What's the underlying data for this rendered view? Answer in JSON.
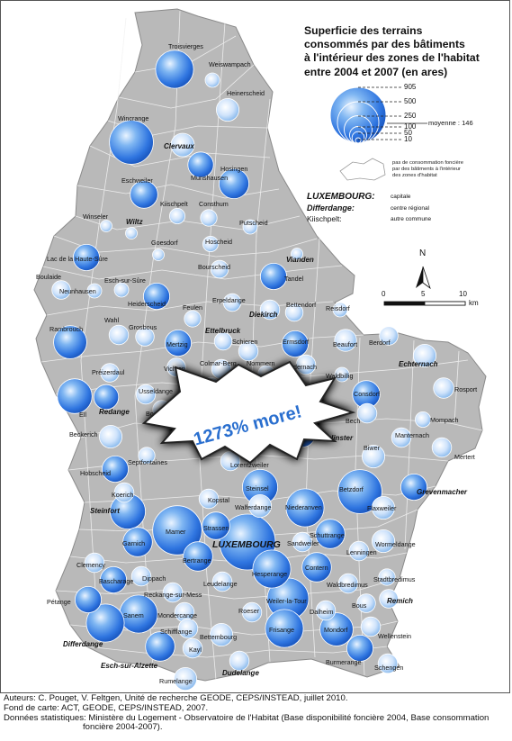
{
  "legend": {
    "title_lines": [
      "Superficie des terrains",
      "consommés par des bâtiments",
      "à l'intérieur des zones de l'habitat",
      "entre 2004 et 2007 (en ares)"
    ],
    "values": [
      "905",
      "500",
      "250",
      "100",
      "50",
      "10"
    ],
    "mean_label": "moyenne : 146",
    "no_consumption_lines": [
      "pas de consommation foncière",
      "par des bâtiments à l'intérieur",
      "des zones d'habitat"
    ],
    "hierarchy": [
      {
        "name": "LUXEMBOURG:",
        "label": "capitale"
      },
      {
        "name": "Differdange:",
        "label": "centre régional"
      },
      {
        "name": "Kiischpelt:",
        "label": "autre commune"
      }
    ]
  },
  "north_label": "N",
  "scale": {
    "ticks": [
      "0",
      "5",
      "10"
    ],
    "unit": "km"
  },
  "promo": "1273% more!",
  "footer": [
    "Auteurs: C. Pouget, V. Feltgen, Unité de recherche GEODE, CEPS/INSTEAD, juillet 2010.",
    "Fond de carte: ACT, GEODE, CEPS/INSTEAD, 2007.",
    "Données statistiques: Ministère du Logement - Observatoire de l'Habitat (Base disponibilité foncière 2004, Base consommation",
    "foncière 2004-2007)."
  ],
  "communes": [
    {
      "name": "Troisvierges",
      "value": 420
    },
    {
      "name": "Weiswampach",
      "value": 60
    },
    {
      "name": "Heinerscheid",
      "value": 150
    },
    {
      "name": "Wincrange",
      "value": 560
    },
    {
      "name": "Clervaux",
      "value": 160
    },
    {
      "name": "Munshausen",
      "value": 190
    },
    {
      "name": "Hosingen",
      "value": 260
    },
    {
      "name": "Eschweiler",
      "value": 220
    },
    {
      "name": "Kiischpelt",
      "value": 70
    },
    {
      "name": "Consthum",
      "value": 80
    },
    {
      "name": "Winseler",
      "value": 40
    },
    {
      "name": "Wiltz",
      "value": 40
    },
    {
      "name": "Putscheid",
      "value": 60
    },
    {
      "name": "Goesdorf",
      "value": 40
    },
    {
      "name": "Hoscheid",
      "value": 70
    },
    {
      "name": "Lac de la Haute-Sûre",
      "value": 200
    },
    {
      "name": "Vianden",
      "value": 40
    },
    {
      "name": "Boulaide",
      "value": 100
    },
    {
      "name": "Esch-sur-Sûre",
      "value": 60
    },
    {
      "name": "Bourscheid",
      "value": 90
    },
    {
      "name": "Tandel",
      "value": 200
    },
    {
      "name": "Neunhausen",
      "value": 60
    },
    {
      "name": "Heiderscheid",
      "value": 200
    },
    {
      "name": "Erpeldange",
      "value": 90
    },
    {
      "name": "Feulen",
      "value": 80
    },
    {
      "name": "Diekirch",
      "value": 110
    },
    {
      "name": "Bettendorf",
      "value": 90
    },
    {
      "name": "Reisdorf",
      "value": 60
    },
    {
      "name": "Rambrouch",
      "value": 320
    },
    {
      "name": "Wahl",
      "value": 110
    },
    {
      "name": "Grosbous",
      "value": 100
    },
    {
      "name": "Ettelbruck",
      "value": 90
    },
    {
      "name": "Mertzig",
      "value": 200
    },
    {
      "name": "Schieren",
      "value": 110
    },
    {
      "name": "Ermsdorf",
      "value": 200
    },
    {
      "name": "Beaufort",
      "value": 140
    },
    {
      "name": "Berdorf",
      "value": 100
    },
    {
      "name": "Colmar-Berg",
      "value": 110
    },
    {
      "name": "Nommern",
      "value": 80
    },
    {
      "name": "Medernach",
      "value": 110
    },
    {
      "name": "Préizerdaul",
      "value": 100
    },
    {
      "name": "Vichten",
      "value": 100
    },
    {
      "name": "Waldbillig",
      "value": 60
    },
    {
      "name": "Echternach",
      "value": 150
    },
    {
      "name": "Rosport",
      "value": 120
    },
    {
      "name": "Bissen",
      "value": 110
    },
    {
      "name": "Usseldange",
      "value": 110
    },
    {
      "name": "Consdorf",
      "value": 220
    },
    {
      "name": "Ell",
      "value": 350
    },
    {
      "name": "Redange",
      "value": 180
    },
    {
      "name": "Boevange",
      "value": 100
    },
    {
      "name": "Mompach",
      "value": 70
    },
    {
      "name": "Bech",
      "value": 110
    },
    {
      "name": "Beckerich",
      "value": 150
    },
    {
      "name": "Junglinster",
      "value": 200
    },
    {
      "name": "Manternach",
      "value": 110
    },
    {
      "name": "Biwer",
      "value": 150
    },
    {
      "name": "Mertert",
      "value": 110
    },
    {
      "name": "Septfontaines",
      "value": 80
    },
    {
      "name": "Lorentzweiler",
      "value": 110
    },
    {
      "name": "Hobscheid",
      "value": 200
    },
    {
      "name": "Koerich",
      "value": 110
    },
    {
      "name": "Steinsel",
      "value": 360
    },
    {
      "name": "Betzdorf",
      "value": 560
    },
    {
      "name": "Grevenmacher",
      "value": 200
    },
    {
      "name": "Kopstal",
      "value": 110
    },
    {
      "name": "Walferdange",
      "value": 150
    },
    {
      "name": "Niederanven",
      "value": 420
    },
    {
      "name": "Flaxweiler",
      "value": 150
    },
    {
      "name": "Steinfort",
      "value": 360
    },
    {
      "name": "Mamer",
      "value": 700
    },
    {
      "name": "Strassen",
      "value": 220
    },
    {
      "name": "LUXEMBOURG",
      "value": 905
    },
    {
      "name": "Schuttrange",
      "value": 250
    },
    {
      "name": "Garnich",
      "value": 250
    },
    {
      "name": "Sandweiler",
      "value": 110
    },
    {
      "name": "Wormeldange",
      "value": 150
    },
    {
      "name": "Bertrange",
      "value": 250
    },
    {
      "name": "Lenningen",
      "value": 110
    },
    {
      "name": "Clemency",
      "value": 110
    },
    {
      "name": "Hesperange",
      "value": 420
    },
    {
      "name": "Contern",
      "value": 250
    },
    {
      "name": "Dippach",
      "value": 110
    },
    {
      "name": "Bascharage",
      "value": 200
    },
    {
      "name": "Leudelange",
      "value": 110
    },
    {
      "name": "Stadtbredimus",
      "value": 80
    },
    {
      "name": "Waldbredimus",
      "value": 110
    },
    {
      "name": "Reckange-sur-Mess",
      "value": 110
    },
    {
      "name": "Weiler-la-Tour",
      "value": 500
    },
    {
      "name": "Bous",
      "value": 100
    },
    {
      "name": "Pétange",
      "value": 200
    },
    {
      "name": "Sanem",
      "value": 420
    },
    {
      "name": "Mondercange",
      "value": 110
    },
    {
      "name": "Roeser",
      "value": 110
    },
    {
      "name": "Dalheim",
      "value": 110
    },
    {
      "name": "Remich",
      "value": 100
    },
    {
      "name": "Differdange",
      "value": 420
    },
    {
      "name": "Schifflange",
      "value": 110
    },
    {
      "name": "Frisange",
      "value": 420
    },
    {
      "name": "Mondorf",
      "value": 320
    },
    {
      "name": "Wellenstein",
      "value": 110
    },
    {
      "name": "Bettembourg",
      "value": 150
    },
    {
      "name": "Esch-sur-Alzette",
      "value": 250
    },
    {
      "name": "Kayl",
      "value": 110
    },
    {
      "name": "Burmerange",
      "value": 200
    },
    {
      "name": "Dudelange",
      "value": 110
    },
    {
      "name": "Schengen",
      "value": 110
    },
    {
      "name": "Rumelange",
      "value": 150
    }
  ]
}
